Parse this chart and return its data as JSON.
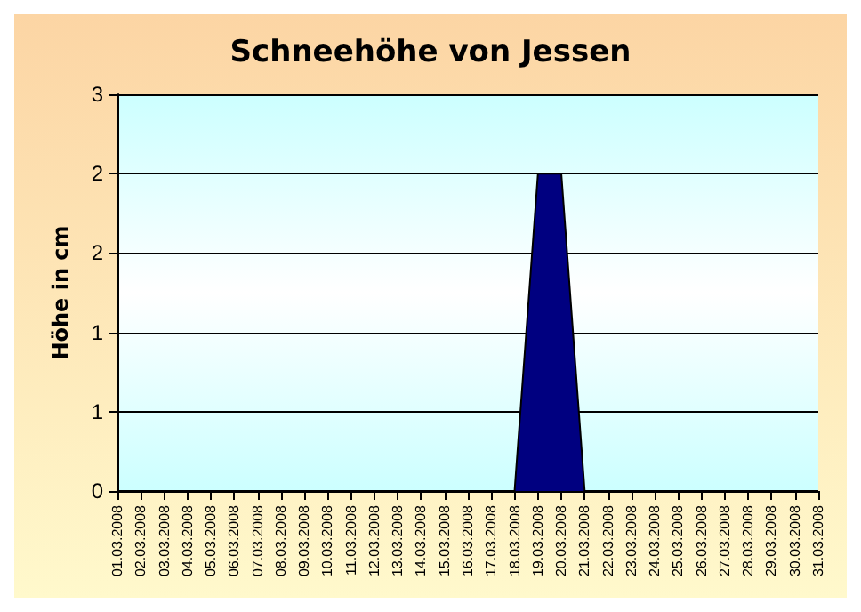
{
  "chart_data": {
    "type": "area",
    "title": "Schneehöhe von Jessen",
    "ylabel": "Höhe in cm",
    "categories": [
      "01.03.2008",
      "02.03.2008",
      "03.03.2008",
      "04.03.2008",
      "05.03.2008",
      "06.03.2008",
      "07.03.2008",
      "08.03.2008",
      "09.03.2008",
      "10.03.2008",
      "11.03.2008",
      "12.03.2008",
      "13.03.2008",
      "14.03.2008",
      "15.03.2008",
      "16.03.2008",
      "17.03.2008",
      "18.03.2008",
      "19.03.2008",
      "20.03.2008",
      "21.03.2008",
      "22.03.2008",
      "23.03.2008",
      "24.03.2008",
      "25.03.2008",
      "26.03.2008",
      "27.03.2008",
      "28.03.2008",
      "29.03.2008",
      "30.03.2008",
      "31.03.2008"
    ],
    "values": [
      0,
      0,
      0,
      0,
      0,
      0,
      0,
      0,
      0,
      0,
      0,
      0,
      0,
      0,
      0,
      0,
      0,
      0,
      2,
      2,
      0,
      0,
      0,
      0,
      0,
      0,
      0,
      0,
      0,
      0,
      0
    ],
    "color": "#000080",
    "ylim": [
      0,
      2.5
    ],
    "yticks": [
      {
        "value": 0,
        "label": "0"
      },
      {
        "value": 0.5,
        "label": "1"
      },
      {
        "value": 1,
        "label": "1"
      },
      {
        "value": 1.5,
        "label": "2"
      },
      {
        "value": 2,
        "label": "2"
      },
      {
        "value": 2.5,
        "label": "3"
      }
    ],
    "grid": "y"
  }
}
